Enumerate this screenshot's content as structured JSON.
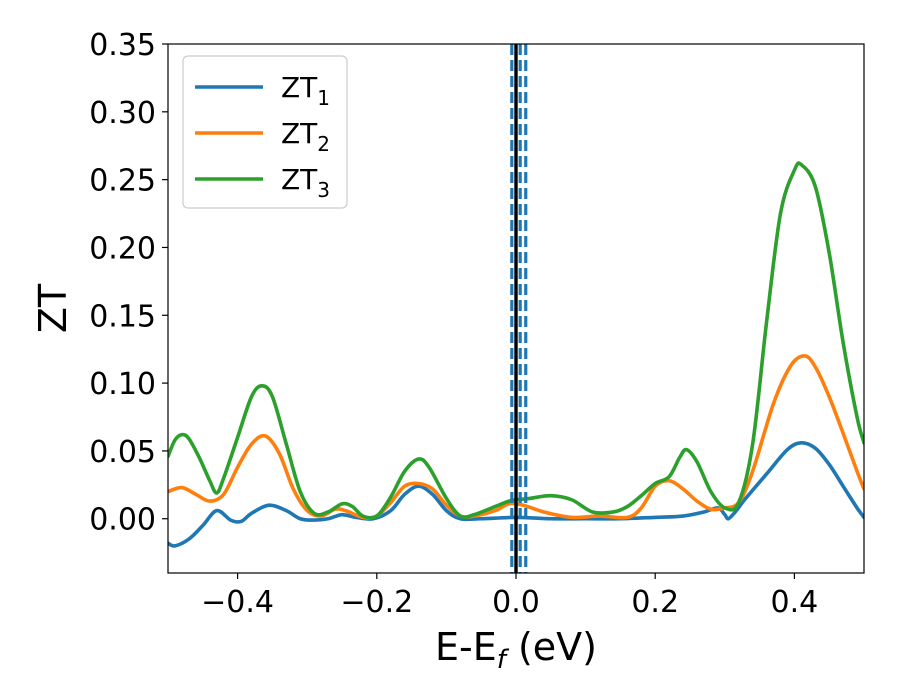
{
  "chart_data": {
    "type": "line",
    "title": "",
    "xlabel": {
      "main": "E-E",
      "sub": "f",
      "unit": " (eV)"
    },
    "ylabel": "ZT",
    "xlim": [
      -0.5,
      0.5
    ],
    "ylim": [
      -0.04,
      0.35
    ],
    "xticks": [
      -0.4,
      -0.2,
      0.0,
      0.2,
      0.4
    ],
    "xtick_labels": [
      "−0.4",
      "−0.2",
      "0.0",
      "0.2",
      "0.4"
    ],
    "yticks": [
      0.0,
      0.05,
      0.1,
      0.15,
      0.2,
      0.25,
      0.3,
      0.35
    ],
    "ytick_labels": [
      "0.00",
      "0.05",
      "0.10",
      "0.15",
      "0.20",
      "0.25",
      "0.30",
      "0.35"
    ],
    "grid": false,
    "legend_position": "top-left",
    "vlines": [
      {
        "x": 0.0,
        "style": "solid",
        "color": "#000000"
      },
      {
        "x": -0.006,
        "style": "dashed",
        "color": "#1f77b4"
      },
      {
        "x": 0.006,
        "style": "dashed",
        "color": "#1f77b4"
      },
      {
        "x": 0.014,
        "style": "dashed",
        "color": "#1f77b4"
      }
    ],
    "series": [
      {
        "name": "ZT",
        "sub": "1",
        "color": "#1f77b4",
        "points": [
          [
            -0.5,
            -0.018
          ],
          [
            -0.49,
            -0.02
          ],
          [
            -0.47,
            -0.015
          ],
          [
            -0.45,
            -0.005
          ],
          [
            -0.43,
            0.006
          ],
          [
            -0.41,
            -0.001
          ],
          [
            -0.395,
            -0.002
          ],
          [
            -0.38,
            0.004
          ],
          [
            -0.355,
            0.01
          ],
          [
            -0.33,
            0.006
          ],
          [
            -0.31,
            0.0
          ],
          [
            -0.29,
            -0.001
          ],
          [
            -0.27,
            0.0
          ],
          [
            -0.25,
            0.003
          ],
          [
            -0.23,
            0.001
          ],
          [
            -0.205,
            0.0
          ],
          [
            -0.18,
            0.006
          ],
          [
            -0.16,
            0.018
          ],
          [
            -0.14,
            0.024
          ],
          [
            -0.12,
            0.018
          ],
          [
            -0.1,
            0.006
          ],
          [
            -0.08,
            0.0
          ],
          [
            -0.05,
            0.0
          ],
          [
            0.0,
            0.001
          ],
          [
            0.05,
            0.0
          ],
          [
            0.1,
            0.0
          ],
          [
            0.15,
            0.0
          ],
          [
            0.2,
            0.001
          ],
          [
            0.24,
            0.002
          ],
          [
            0.27,
            0.005
          ],
          [
            0.29,
            0.008
          ],
          [
            0.3,
            0.003
          ],
          [
            0.305,
            0.0
          ],
          [
            0.315,
            0.005
          ],
          [
            0.33,
            0.015
          ],
          [
            0.36,
            0.033
          ],
          [
            0.39,
            0.051
          ],
          [
            0.41,
            0.056
          ],
          [
            0.43,
            0.052
          ],
          [
            0.45,
            0.04
          ],
          [
            0.47,
            0.024
          ],
          [
            0.49,
            0.008
          ],
          [
            0.5,
            0.001
          ]
        ]
      },
      {
        "name": "ZT",
        "sub": "2",
        "color": "#ff7f0e",
        "points": [
          [
            -0.5,
            0.02
          ],
          [
            -0.48,
            0.023
          ],
          [
            -0.46,
            0.018
          ],
          [
            -0.44,
            0.013
          ],
          [
            -0.42,
            0.018
          ],
          [
            -0.4,
            0.038
          ],
          [
            -0.38,
            0.055
          ],
          [
            -0.36,
            0.061
          ],
          [
            -0.34,
            0.048
          ],
          [
            -0.32,
            0.022
          ],
          [
            -0.3,
            0.006
          ],
          [
            -0.28,
            0.002
          ],
          [
            -0.26,
            0.007
          ],
          [
            -0.245,
            0.006
          ],
          [
            -0.22,
            0.001
          ],
          [
            -0.2,
            0.002
          ],
          [
            -0.18,
            0.012
          ],
          [
            -0.16,
            0.024
          ],
          [
            -0.14,
            0.026
          ],
          [
            -0.12,
            0.022
          ],
          [
            -0.1,
            0.01
          ],
          [
            -0.08,
            0.002
          ],
          [
            -0.06,
            0.002
          ],
          [
            -0.03,
            0.006
          ],
          [
            -0.01,
            0.011
          ],
          [
            0.01,
            0.01
          ],
          [
            0.04,
            0.005
          ],
          [
            0.08,
            0.001
          ],
          [
            0.12,
            0.002
          ],
          [
            0.16,
            0.001
          ],
          [
            0.18,
            0.008
          ],
          [
            0.2,
            0.024
          ],
          [
            0.22,
            0.028
          ],
          [
            0.24,
            0.022
          ],
          [
            0.26,
            0.013
          ],
          [
            0.28,
            0.007
          ],
          [
            0.3,
            0.008
          ],
          [
            0.32,
            0.012
          ],
          [
            0.34,
            0.035
          ],
          [
            0.37,
            0.085
          ],
          [
            0.395,
            0.113
          ],
          [
            0.415,
            0.12
          ],
          [
            0.43,
            0.112
          ],
          [
            0.45,
            0.09
          ],
          [
            0.47,
            0.063
          ],
          [
            0.49,
            0.035
          ],
          [
            0.5,
            0.022
          ]
        ]
      },
      {
        "name": "ZT",
        "sub": "3",
        "color": "#2ca02c",
        "points": [
          [
            -0.5,
            0.046
          ],
          [
            -0.49,
            0.058
          ],
          [
            -0.48,
            0.062
          ],
          [
            -0.47,
            0.059
          ],
          [
            -0.455,
            0.045
          ],
          [
            -0.44,
            0.028
          ],
          [
            -0.43,
            0.019
          ],
          [
            -0.42,
            0.03
          ],
          [
            -0.4,
            0.06
          ],
          [
            -0.38,
            0.09
          ],
          [
            -0.365,
            0.098
          ],
          [
            -0.35,
            0.09
          ],
          [
            -0.33,
            0.055
          ],
          [
            -0.31,
            0.02
          ],
          [
            -0.29,
            0.004
          ],
          [
            -0.27,
            0.005
          ],
          [
            -0.25,
            0.011
          ],
          [
            -0.235,
            0.009
          ],
          [
            -0.22,
            0.002
          ],
          [
            -0.2,
            0.002
          ],
          [
            -0.18,
            0.016
          ],
          [
            -0.16,
            0.035
          ],
          [
            -0.14,
            0.044
          ],
          [
            -0.125,
            0.038
          ],
          [
            -0.1,
            0.015
          ],
          [
            -0.08,
            0.002
          ],
          [
            -0.06,
            0.003
          ],
          [
            -0.03,
            0.009
          ],
          [
            -0.01,
            0.013
          ],
          [
            0.0,
            0.014
          ],
          [
            0.02,
            0.015
          ],
          [
            0.05,
            0.017
          ],
          [
            0.08,
            0.014
          ],
          [
            0.11,
            0.005
          ],
          [
            0.14,
            0.005
          ],
          [
            0.16,
            0.009
          ],
          [
            0.18,
            0.017
          ],
          [
            0.2,
            0.026
          ],
          [
            0.22,
            0.031
          ],
          [
            0.235,
            0.045
          ],
          [
            0.245,
            0.051
          ],
          [
            0.26,
            0.042
          ],
          [
            0.28,
            0.02
          ],
          [
            0.3,
            0.008
          ],
          [
            0.32,
            0.012
          ],
          [
            0.34,
            0.055
          ],
          [
            0.36,
            0.145
          ],
          [
            0.38,
            0.225
          ],
          [
            0.4,
            0.257
          ],
          [
            0.41,
            0.261
          ],
          [
            0.43,
            0.245
          ],
          [
            0.45,
            0.196
          ],
          [
            0.47,
            0.13
          ],
          [
            0.49,
            0.075
          ],
          [
            0.5,
            0.056
          ]
        ]
      }
    ]
  }
}
